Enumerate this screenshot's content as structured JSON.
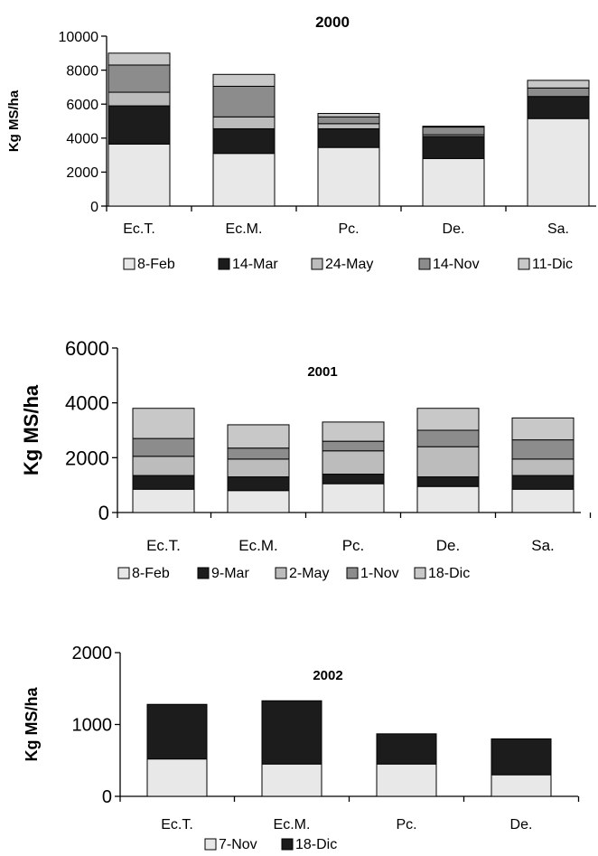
{
  "chart_data": [
    {
      "type": "bar",
      "stacked": true,
      "title": "2000",
      "ylabel": "Kg MS/ha",
      "xlabel": "",
      "ylim": [
        0,
        10000
      ],
      "yticks": [
        "0",
        "2000",
        "4000",
        "6000",
        "8000",
        "10000"
      ],
      "categories": [
        "Ec.T.",
        "Ec.M.",
        "Pc.",
        "De.",
        "Sa."
      ],
      "legend_position": "bottom",
      "series": [
        {
          "name": "8-Feb",
          "color": "#e8e8e8",
          "values": [
            3650,
            3100,
            3450,
            2800,
            5150
          ]
        },
        {
          "name": "14-Mar",
          "color": "#1c1c1c",
          "values": [
            2250,
            1450,
            1100,
            1300,
            1300
          ]
        },
        {
          "name": "24-May",
          "color": "#bcbcbc",
          "values": [
            800,
            700,
            300,
            100,
            0
          ]
        },
        {
          "name": "14-Nov",
          "color": "#8c8c8c",
          "values": [
            1600,
            1800,
            400,
            450,
            500
          ]
        },
        {
          "name": "11-Dic",
          "color": "#c8c8c8",
          "values": [
            700,
            700,
            200,
            50,
            450
          ]
        }
      ]
    },
    {
      "type": "bar",
      "stacked": true,
      "title": "2001",
      "ylabel": "Kg MS/ha",
      "xlabel": "",
      "ylim": [
        0,
        6000
      ],
      "yticks": [
        "0",
        "2000",
        "4000",
        "6000"
      ],
      "categories": [
        "Ec.T.",
        "Ec.M.",
        "Pc.",
        "De.",
        "Sa."
      ],
      "legend_position": "bottom",
      "series": [
        {
          "name": "8-Feb",
          "color": "#e8e8e8",
          "values": [
            850,
            800,
            1050,
            950,
            850
          ]
        },
        {
          "name": "9-Mar",
          "color": "#1c1c1c",
          "values": [
            500,
            500,
            350,
            350,
            500
          ]
        },
        {
          "name": "2-May",
          "color": "#bcbcbc",
          "values": [
            700,
            650,
            850,
            1100,
            600
          ]
        },
        {
          "name": "1-Nov",
          "color": "#8c8c8c",
          "values": [
            650,
            400,
            350,
            600,
            700
          ]
        },
        {
          "name": "18-Dic",
          "color": "#c8c8c8",
          "values": [
            1100,
            850,
            700,
            800,
            800
          ]
        }
      ]
    },
    {
      "type": "bar",
      "stacked": true,
      "title": "2002",
      "ylabel": "Kg MS/ha",
      "xlabel": "",
      "ylim": [
        0,
        2000
      ],
      "yticks": [
        "0",
        "1000",
        "2000"
      ],
      "categories": [
        "Ec.T.",
        "Ec.M.",
        "Pc.",
        "De."
      ],
      "legend_position": "bottom",
      "series": [
        {
          "name": "7-Nov",
          "color": "#e8e8e8",
          "values": [
            520,
            450,
            450,
            300
          ]
        },
        {
          "name": "18-Dic",
          "color": "#1c1c1c",
          "values": [
            760,
            880,
            420,
            500
          ]
        }
      ]
    }
  ]
}
